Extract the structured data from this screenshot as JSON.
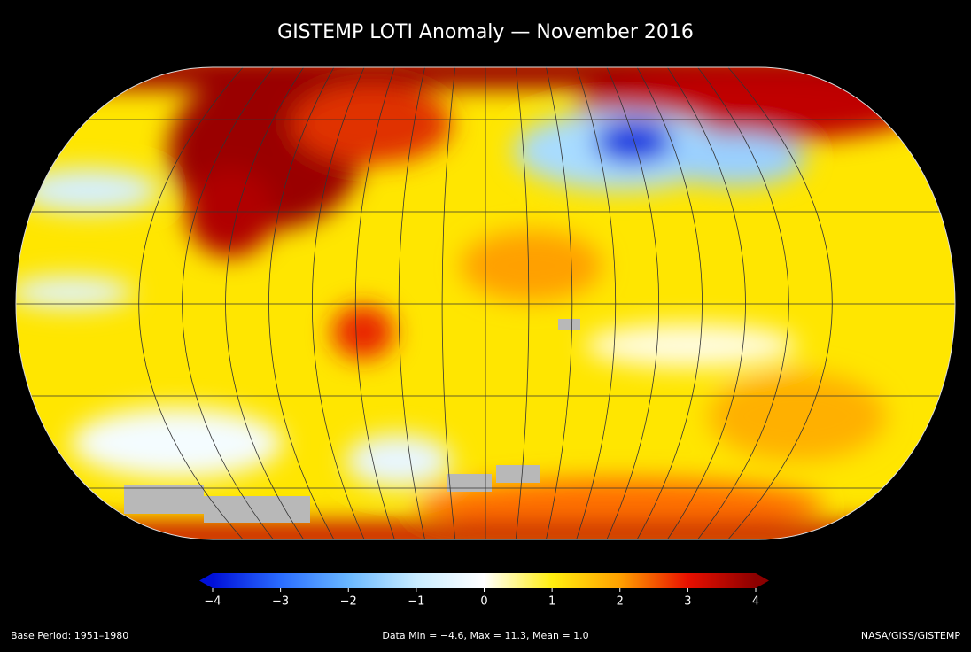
{
  "title": "GISTEMP LOTI Anomaly — November 2016",
  "colorbar": {
    "range": [
      -4,
      4
    ],
    "ticks": [
      {
        "value": -4,
        "label": "−4"
      },
      {
        "value": -3,
        "label": "−3"
      },
      {
        "value": -2,
        "label": "−2"
      },
      {
        "value": -1,
        "label": "−1"
      },
      0,
      1,
      2,
      3,
      4
    ],
    "colors": [
      "#0010d8",
      "#2a6cff",
      "#6ab8ff",
      "#c8ecff",
      "#ffffff",
      "#ffee10",
      "#ffa000",
      "#e81000",
      "#8c0000"
    ]
  },
  "footer": {
    "left": "Base Period: 1951–1980",
    "center": "Data Min = −4.6, Max = 11.3, Mean = 1.0",
    "right": "NASA/GISS/GISTEMP"
  }
}
